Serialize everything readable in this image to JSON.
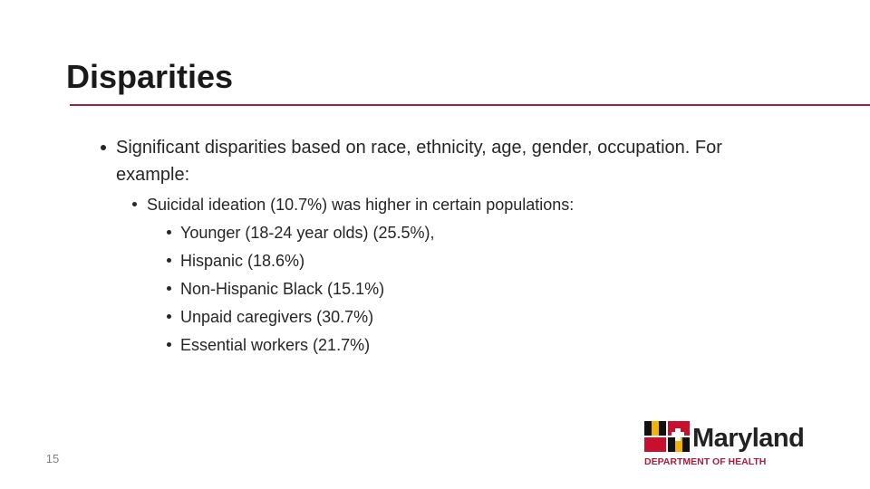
{
  "title": "Disparities",
  "bullets": [
    {
      "text": "Significant disparities based on race, ethnicity, age, gender, occupation.  For example:",
      "children": [
        {
          "text": "Suicidal ideation (10.7%) was higher in certain populations:",
          "children": [
            {
              "text": "Younger (18-24 year olds) (25.5%),"
            },
            {
              "text": "Hispanic (18.6%)"
            },
            {
              "text": "Non-Hispanic Black (15.1%)"
            },
            {
              "text": "Unpaid caregivers (30.7%)"
            },
            {
              "text": "Essential workers (21.7%)"
            }
          ]
        }
      ]
    }
  ],
  "page_number": "15",
  "logo": {
    "name": "Maryland",
    "subtitle": "DEPARTMENT OF HEALTH"
  }
}
